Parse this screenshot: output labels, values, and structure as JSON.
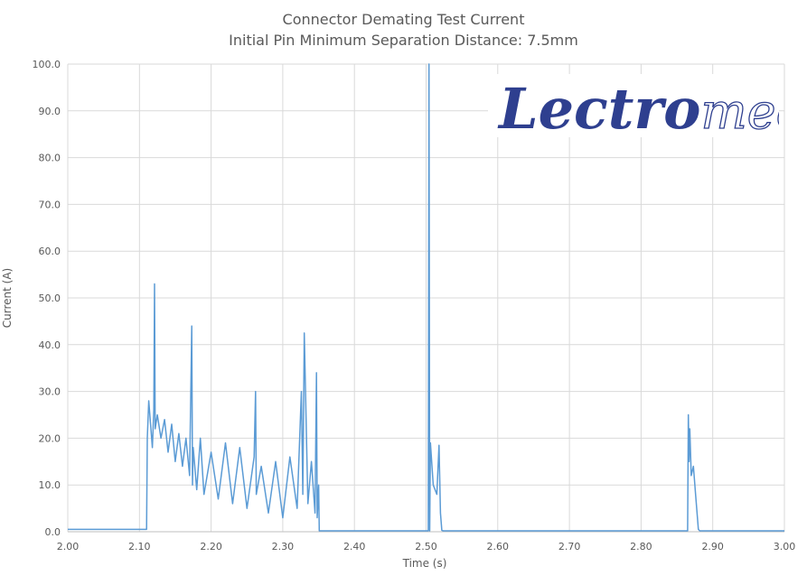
{
  "logo": {
    "text_bold": "Lectro",
    "text_light": "mec",
    "color": "#2E3F8F"
  },
  "chart_data": {
    "type": "line",
    "title": "Connector Demating Test Current",
    "subtitle": "Initial Pin Minimum Separation Distance: 7.5mm",
    "xlabel": "Time (s)",
    "ylabel": "Current (A)",
    "xlim": [
      2.0,
      3.0
    ],
    "ylim": [
      0,
      100
    ],
    "xticks": [
      "2.00",
      "2.10",
      "2.20",
      "2.30",
      "2.40",
      "2.50",
      "2.60",
      "2.70",
      "2.80",
      "2.90",
      "3.00"
    ],
    "yticks": [
      "0.0",
      "10.0",
      "20.0",
      "30.0",
      "40.0",
      "50.0",
      "60.0",
      "70.0",
      "80.0",
      "90.0",
      "100.0"
    ],
    "grid": true,
    "line_color": "#5B9BD5",
    "series": [
      {
        "x": [
          2.0,
          2.11,
          2.111,
          2.113,
          2.116,
          2.118,
          2.12,
          2.121,
          2.122,
          2.125,
          2.13,
          2.135,
          2.14,
          2.145,
          2.15,
          2.155,
          2.16,
          2.165,
          2.17,
          2.173,
          2.174,
          2.175,
          2.18,
          2.185,
          2.19,
          2.2,
          2.21,
          2.22,
          2.23,
          2.24,
          2.25,
          2.26,
          2.262,
          2.263,
          2.27,
          2.28,
          2.29,
          2.3,
          2.31,
          2.32,
          2.326,
          2.328,
          2.33,
          2.335,
          2.34,
          2.345,
          2.347,
          2.348,
          2.35,
          2.351,
          2.5,
          2.503,
          2.504,
          2.505,
          2.506,
          2.51,
          2.515,
          2.518,
          2.52,
          2.522,
          2.524,
          2.53,
          2.865,
          2.866,
          2.867,
          2.868,
          2.87,
          2.873,
          2.876,
          2.88,
          2.882,
          3.0
        ],
        "y": [
          0.5,
          0.5,
          20.0,
          28.0,
          22.0,
          18.0,
          26.0,
          53.0,
          22.0,
          25.0,
          20.0,
          24.0,
          17.0,
          23.0,
          15.0,
          21.0,
          14.0,
          20.0,
          12.0,
          44.0,
          10.0,
          18.0,
          9.0,
          20.0,
          8.0,
          17.0,
          7.0,
          19.0,
          6.0,
          18.0,
          5.0,
          16.0,
          30.0,
          8.0,
          14.0,
          4.0,
          15.0,
          3.0,
          16.0,
          5.0,
          30.0,
          8.0,
          42.5,
          6.0,
          15.0,
          4.0,
          34.0,
          3.0,
          10.0,
          0.2,
          0.2,
          0.2,
          100.0,
          0.2,
          19.0,
          10.0,
          8.0,
          18.5,
          4.0,
          0.3,
          0.2,
          0.2,
          0.2,
          25.0,
          15.0,
          22.0,
          12.0,
          14.0,
          8.0,
          0.5,
          0.2,
          0.2
        ]
      }
    ]
  }
}
